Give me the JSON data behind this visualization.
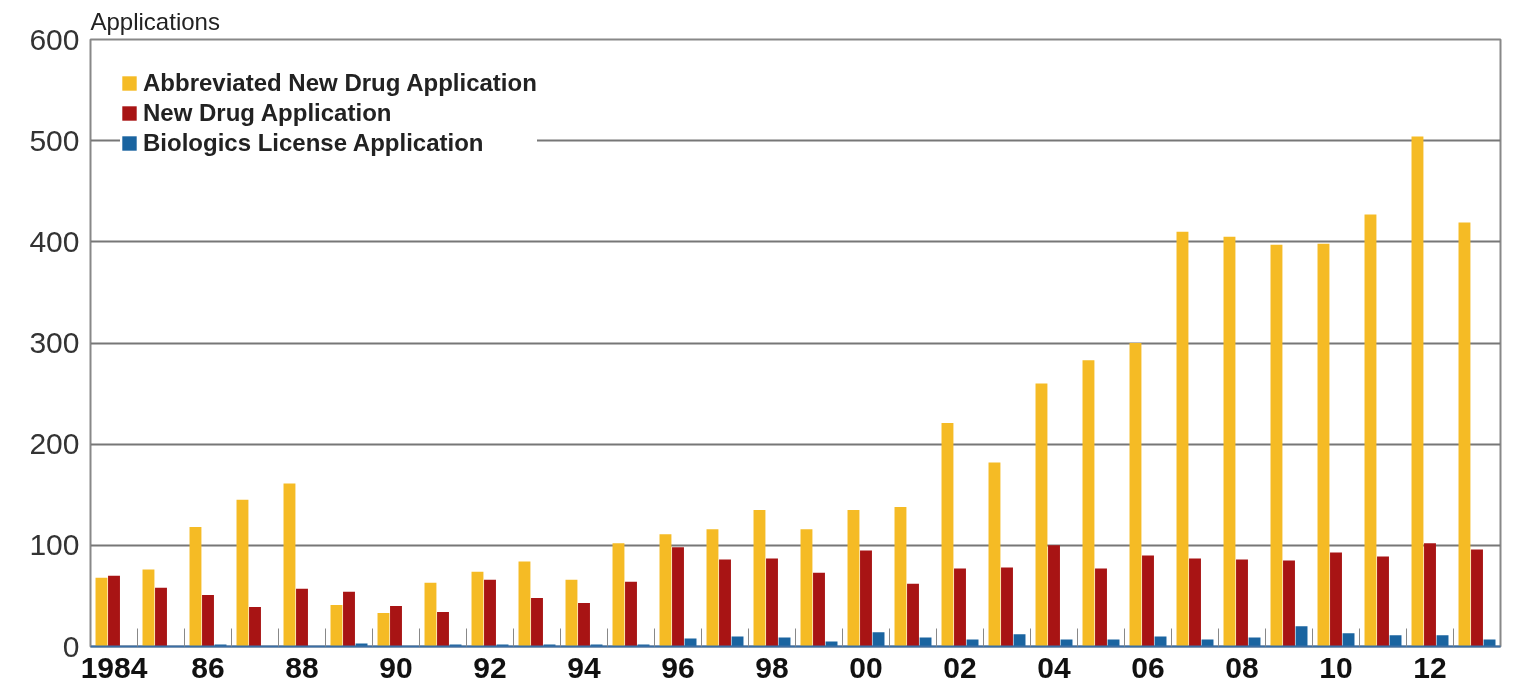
{
  "chart_data": {
    "type": "bar",
    "title": "Applications",
    "categories": [
      "1984",
      null,
      "86",
      null,
      "88",
      null,
      "90",
      null,
      "92",
      null,
      "94",
      null,
      "96",
      null,
      "98",
      null,
      "00",
      null,
      "02",
      null,
      "04",
      null,
      "06",
      null,
      "08",
      null,
      "10",
      null,
      "12",
      null
    ],
    "series": [
      {
        "name": "Abbreviated New Drug Application",
        "color": "#f5bb25",
        "values": [
          68,
          76,
          118,
          145,
          161,
          41,
          33,
          63,
          74,
          84,
          66,
          102,
          111,
          116,
          135,
          116,
          135,
          138,
          221,
          182,
          260,
          283,
          300,
          410,
          405,
          397,
          398,
          427,
          504,
          419
        ]
      },
      {
        "name": "New Drug Application",
        "color": "#a81414",
        "values": [
          70,
          58,
          51,
          39,
          57,
          54,
          40,
          34,
          66,
          48,
          43,
          64,
          98,
          86,
          87,
          73,
          95,
          62,
          77,
          78,
          100,
          77,
          90,
          87,
          86,
          85,
          93,
          89,
          102,
          96
        ]
      },
      {
        "name": "Biologics License Application",
        "color": "#1a64a0",
        "values": [
          0,
          0,
          2,
          0,
          0,
          3,
          0,
          2,
          2,
          2,
          2,
          2,
          8,
          10,
          9,
          5,
          14,
          9,
          7,
          12,
          7,
          7,
          10,
          7,
          9,
          20,
          13,
          11,
          11,
          7
        ]
      }
    ],
    "ylim": [
      0,
      600
    ],
    "yticks": [
      0,
      100,
      200,
      300,
      400,
      500,
      600
    ],
    "grid": "y",
    "legend": "top left"
  }
}
